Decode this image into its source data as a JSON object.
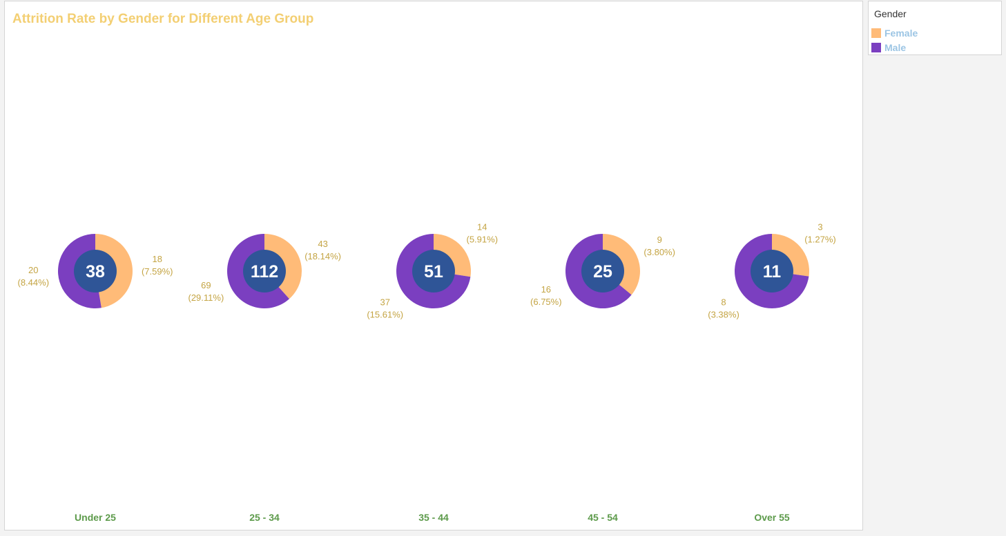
{
  "chart_data": {
    "type": "pie",
    "title": "Attrition Rate by Gender for Different Age Group",
    "legend": {
      "title": "Gender",
      "placement": "top-right",
      "entries": [
        {
          "name": "Female",
          "color": "#ffbb78"
        },
        {
          "name": "Male",
          "color": "#7b3fc0"
        }
      ]
    },
    "center_color": "#2f5597",
    "label_color": "#c4a443",
    "category_label_color": "#5c9a4a",
    "groups": [
      {
        "category": "Under 25",
        "total": "38",
        "female": {
          "value": 18,
          "label_value": "18",
          "label_pct": "(7.59%)"
        },
        "male": {
          "value": 20,
          "label_value": "20",
          "label_pct": "(8.44%)"
        }
      },
      {
        "category": "25 - 34",
        "total": "112",
        "female": {
          "value": 43,
          "label_value": "43",
          "label_pct": "(18.14%)"
        },
        "male": {
          "value": 69,
          "label_value": "69",
          "label_pct": "(29.11%)"
        }
      },
      {
        "category": "35 - 44",
        "total": "51",
        "female": {
          "value": 14,
          "label_value": "14",
          "label_pct": "(5.91%)"
        },
        "male": {
          "value": 37,
          "label_value": "37",
          "label_pct": "(15.61%)"
        }
      },
      {
        "category": "45 - 54",
        "total": "25",
        "female": {
          "value": 9,
          "label_value": "9",
          "label_pct": "(3.80%)"
        },
        "male": {
          "value": 16,
          "label_value": "16",
          "label_pct": "(6.75%)"
        }
      },
      {
        "category": "Over 55",
        "total": "11",
        "female": {
          "value": 3,
          "label_value": "3",
          "label_pct": "(1.27%)"
        },
        "male": {
          "value": 8,
          "label_value": "8",
          "label_pct": "(3.38%)"
        }
      }
    ]
  }
}
